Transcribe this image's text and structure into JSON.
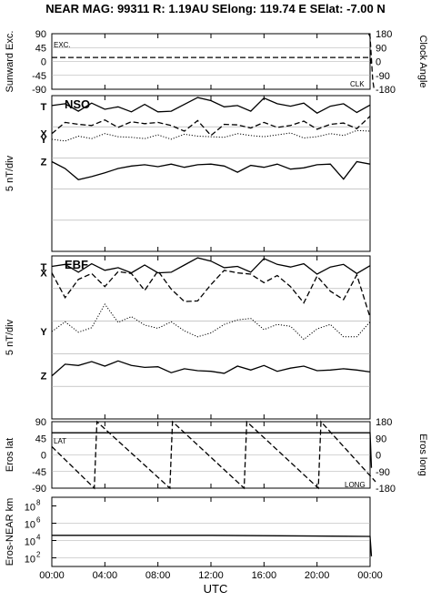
{
  "header": {
    "title": "NEAR MAG: 99311  R: 1.19AU  SElong: 119.74 E  SElat:  -7.00 N"
  },
  "x_axis": {
    "ticks": [
      "00:00",
      "04:00",
      "08:00",
      "12:00",
      "16:00",
      "20:00",
      "00:00"
    ],
    "label": "UTC"
  },
  "panels": {
    "p1": {
      "left_label": "Sunward Exc.",
      "right_label": "Clock Angle",
      "left_ticks": [
        "90",
        "45",
        "0",
        "-45",
        "-90"
      ],
      "right_ticks": [
        "180",
        "90",
        "0",
        "-90",
        "-180"
      ],
      "annot_exc": "EXC.",
      "annot_clk": "CLK"
    },
    "p2": {
      "left_label": "5 nT/div",
      "name": "NSO",
      "curve_labels": [
        "T",
        "X",
        "Y",
        "Z"
      ]
    },
    "p3": {
      "left_label": "5 nT/div",
      "name": "EBF",
      "curve_labels": [
        "T",
        "X",
        "Y",
        "Z"
      ]
    },
    "p4": {
      "left_label": "Eros lat",
      "right_label": "Eros long",
      "left_ticks": [
        "90",
        "45",
        "0",
        "-45",
        "-90"
      ],
      "right_ticks": [
        "180",
        "90",
        "0",
        "-90",
        "-180"
      ],
      "annot_lat": "LAT",
      "annot_long": "LONG"
    },
    "p5": {
      "left_label": "Eros-NEAR km",
      "ticks": [
        {
          "base": "10",
          "exp": "8"
        },
        {
          "base": "10",
          "exp": "6"
        },
        {
          "base": "10",
          "exp": "4"
        },
        {
          "base": "10",
          "exp": "2"
        }
      ]
    }
  },
  "chart_data": [
    {
      "type": "line",
      "title": "",
      "xlabel": "UTC",
      "xlim": [
        0,
        24
      ],
      "ylabel": "Sunward Exc.",
      "ylim": [
        -90,
        90
      ],
      "y2label": "Clock Angle",
      "y2lim": [
        -180,
        180
      ],
      "series": [
        {
          "name": "EXC.",
          "style": "dashed",
          "x": [
            0,
            24.0,
            24.1
          ],
          "y": [
            13,
            13,
            -10
          ]
        },
        {
          "name": "CLK",
          "axis": "right",
          "style": "dashed",
          "x": [
            23.9,
            24.0,
            24.2,
            24.3
          ],
          "y": [
            180,
            160,
            -120,
            -180
          ]
        }
      ]
    },
    {
      "type": "line",
      "title": "NSO",
      "xlabel": "UTC",
      "xlim": [
        0,
        24
      ],
      "ylabel": "5 nT/div",
      "y_units": "nT offset from top line, 5 nT per division",
      "ylim": [
        -25,
        0
      ],
      "series": [
        {
          "name": "T",
          "style": "solid",
          "x": [
            0,
            1,
            2,
            3,
            4,
            5,
            6,
            7,
            8,
            9,
            10,
            11,
            12,
            13,
            14,
            15,
            16,
            17,
            18,
            19,
            20,
            21,
            22,
            23,
            24
          ],
          "y": [
            -1.6,
            -1.3,
            -2.5,
            -1.2,
            -2.2,
            -1.8,
            -2.6,
            -1.4,
            -2.6,
            -2.5,
            -1.4,
            -0.3,
            -0.8,
            -1.8,
            -1.6,
            -2.5,
            -0.4,
            -1.3,
            -1.7,
            -1.2,
            -2.8,
            -1.7,
            -1.3,
            -2.7,
            -1.5
          ]
        },
        {
          "name": "X",
          "style": "dashed",
          "x": [
            0,
            1,
            2,
            3,
            4,
            5,
            6,
            7,
            8,
            9,
            10,
            11,
            12,
            13,
            14,
            15,
            16,
            17,
            18,
            19,
            20,
            21,
            22,
            23,
            24
          ],
          "y": [
            -6.1,
            -4.3,
            -4.6,
            -4.8,
            -3.9,
            -5.1,
            -4.2,
            -4.5,
            -4.3,
            -4.8,
            -5.7,
            -4.0,
            -6.4,
            -4.6,
            -4.7,
            -5.2,
            -4.3,
            -5.1,
            -4.8,
            -4.1,
            -5.4,
            -4.6,
            -4.4,
            -5.3,
            -3.3
          ]
        },
        {
          "name": "Y",
          "style": "dotted",
          "x": [
            0,
            1,
            2,
            3,
            4,
            5,
            6,
            7,
            8,
            9,
            10,
            11,
            12,
            13,
            14,
            15,
            16,
            17,
            18,
            19,
            20,
            21,
            22,
            23,
            24
          ],
          "y": [
            -7.0,
            -7.3,
            -6.5,
            -6.9,
            -6.1,
            -6.6,
            -6.7,
            -6.9,
            -6.3,
            -7.0,
            -6.2,
            -6.5,
            -6.6,
            -6.7,
            -6.1,
            -6.4,
            -6.6,
            -6.3,
            -6.0,
            -6.8,
            -6.6,
            -6.1,
            -6.4,
            -5.6,
            -5.7
          ]
        },
        {
          "name": "Z",
          "style": "solid",
          "x": [
            0,
            1,
            2,
            3,
            4,
            5,
            6,
            7,
            8,
            9,
            10,
            11,
            12,
            13,
            14,
            15,
            16,
            17,
            18,
            19,
            20,
            21,
            22,
            23,
            24
          ],
          "y": [
            -10.6,
            -11.7,
            -13.5,
            -13.0,
            -12.4,
            -11.7,
            -11.3,
            -11.1,
            -11.4,
            -11.0,
            -11.5,
            -11.1,
            -11.0,
            -11.3,
            -12.3,
            -11.2,
            -11.5,
            -11.0,
            -11.8,
            -11.6,
            -11.1,
            -11.0,
            -13.4,
            -10.6,
            -11.0
          ]
        }
      ]
    },
    {
      "type": "line",
      "title": "EBF",
      "xlabel": "UTC",
      "xlim": [
        0,
        24
      ],
      "ylabel": "5 nT/div",
      "y_units": "nT offset from top line, 5 nT per division",
      "ylim": [
        -25,
        0
      ],
      "series": [
        {
          "name": "T",
          "style": "solid",
          "x": [
            0,
            1,
            2,
            3,
            4,
            5,
            6,
            7,
            8,
            9,
            10,
            11,
            12,
            13,
            14,
            15,
            16,
            17,
            18,
            19,
            20,
            21,
            22,
            23,
            24
          ],
          "y": [
            -1.6,
            -1.3,
            -2.5,
            -1.2,
            -2.2,
            -1.8,
            -2.6,
            -1.4,
            -2.6,
            -2.5,
            -1.4,
            -0.3,
            -0.8,
            -1.8,
            -1.6,
            -2.5,
            -0.4,
            -1.3,
            -1.7,
            -1.2,
            -2.8,
            -1.7,
            -1.3,
            -2.7,
            -1.5
          ]
        },
        {
          "name": "X",
          "style": "dashed",
          "x": [
            0,
            1,
            2,
            3,
            4,
            5,
            6,
            7,
            8,
            9,
            10,
            11,
            12,
            13,
            14,
            15,
            16,
            17,
            18,
            19,
            20,
            21,
            22,
            23,
            24
          ],
          "y": [
            -2.6,
            -6.4,
            -3.6,
            -2.7,
            -4.7,
            -2.4,
            -2.7,
            -5.3,
            -2.3,
            -5.1,
            -7.0,
            -6.9,
            -4.4,
            -2.2,
            -2.6,
            -2.8,
            -4.1,
            -3.0,
            -4.7,
            -7.2,
            -3.1,
            -5.4,
            -6.7,
            -2.9,
            -9.4
          ]
        },
        {
          "name": "Y",
          "style": "dotted",
          "x": [
            0,
            1,
            2,
            3,
            4,
            5,
            6,
            7,
            8,
            9,
            10,
            11,
            12,
            13,
            14,
            15,
            16,
            17,
            18,
            19,
            20,
            21,
            22,
            23,
            24
          ],
          "y": [
            -11.6,
            -10.1,
            -11.7,
            -11.0,
            -7.4,
            -10.2,
            -9.3,
            -10.6,
            -11.1,
            -10.1,
            -11.5,
            -12.4,
            -11.8,
            -10.5,
            -9.8,
            -9.6,
            -11.3,
            -10.5,
            -10.8,
            -12.8,
            -11.2,
            -10.5,
            -12.4,
            -12.4,
            -10.1
          ]
        },
        {
          "name": "Z",
          "style": "solid",
          "x": [
            0,
            1,
            2,
            3,
            4,
            5,
            6,
            7,
            8,
            9,
            10,
            11,
            12,
            13,
            14,
            15,
            16,
            17,
            18,
            19,
            20,
            21,
            22,
            23,
            24
          ],
          "y": [
            -18.4,
            -16.6,
            -16.8,
            -16.2,
            -16.9,
            -16.1,
            -16.8,
            -17.1,
            -17.0,
            -17.9,
            -17.3,
            -17.6,
            -17.7,
            -18.0,
            -16.9,
            -17.5,
            -16.8,
            -17.7,
            -17.2,
            -16.9,
            -17.6,
            -17.5,
            -17.3,
            -17.5,
            -17.8
          ]
        }
      ]
    },
    {
      "type": "line",
      "title": "",
      "xlabel": "UTC",
      "xlim": [
        0,
        24
      ],
      "ylabel": "Eros lat",
      "ylim": [
        -90,
        90
      ],
      "y2label": "Eros long",
      "y2lim": [
        -180,
        180
      ],
      "series": [
        {
          "name": "LAT",
          "style": "solid",
          "x": [
            0,
            24.0,
            24.1
          ],
          "y": [
            60,
            60,
            -35
          ]
        },
        {
          "name": "LONG",
          "axis": "right",
          "style": "dashed",
          "x": [
            0,
            3.2,
            3.4,
            8.9,
            9.1,
            14.5,
            14.7,
            20.1,
            20.3,
            25.1
          ],
          "y": [
            45,
            -180,
            180,
            -180,
            180,
            -180,
            180,
            -180,
            180,
            -145
          ]
        }
      ]
    },
    {
      "type": "line",
      "title": "",
      "xlabel": "UTC",
      "xlim": [
        0,
        24
      ],
      "ylabel": "Eros-NEAR km",
      "y_scale": "log",
      "ylim": [
        10,
        1000000000
      ],
      "series": [
        {
          "name": "",
          "style": "solid",
          "x": [
            0,
            12,
            24.0,
            24.1
          ],
          "y": [
            40000,
            40000,
            30000,
            150
          ]
        }
      ]
    }
  ]
}
